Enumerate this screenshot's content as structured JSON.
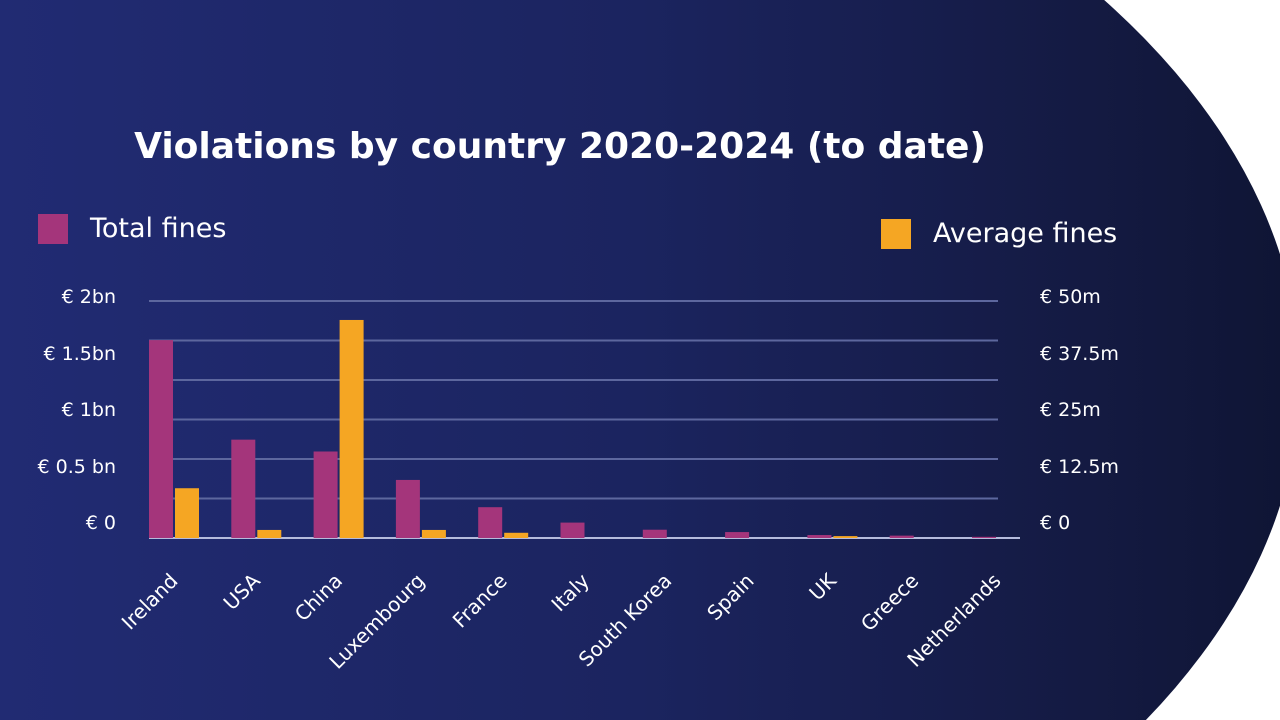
{
  "colors": {
    "total": "#a4357b",
    "average": "#f5a623",
    "grid": "#5d679e",
    "baseline": "#b5bbdc"
  },
  "chart_data": {
    "type": "bar",
    "title": "Violations by country 2020-2024 (to date)",
    "categories": [
      "Ireland",
      "USA",
      "China",
      "Luxembourg",
      "France",
      "Italy",
      "South Korea",
      "Spain",
      "UK",
      "Greece",
      "Netherlands"
    ],
    "series": [
      {
        "name": "Total fines",
        "axis": "left",
        "unit": "bn EUR",
        "values": [
          1.67,
          0.83,
          0.73,
          0.49,
          0.26,
          0.13,
          0.07,
          0.05,
          0.025,
          0.02,
          0.01
        ]
      },
      {
        "name": "Average fines",
        "axis": "right",
        "unit": "m EUR",
        "values": [
          10.5,
          1.7,
          46,
          1.7,
          1.1,
          0,
          0,
          0,
          0.4,
          0,
          0
        ]
      }
    ],
    "left_axis": {
      "ylim": [
        0,
        2
      ],
      "tick_labels": [
        "€ 2bn",
        "€ 1.5bn",
        "€ 1bn",
        "€ 0.5 bn",
        "€ 0"
      ]
    },
    "right_axis": {
      "ylim": [
        0,
        50
      ],
      "tick_labels": [
        "€ 50m",
        "€ 37.5m",
        "€ 25m",
        "€ 12.5m",
        "€ 0"
      ]
    },
    "grid": true,
    "legend": {
      "total_position": "top-left",
      "average_position": "top-right"
    }
  }
}
